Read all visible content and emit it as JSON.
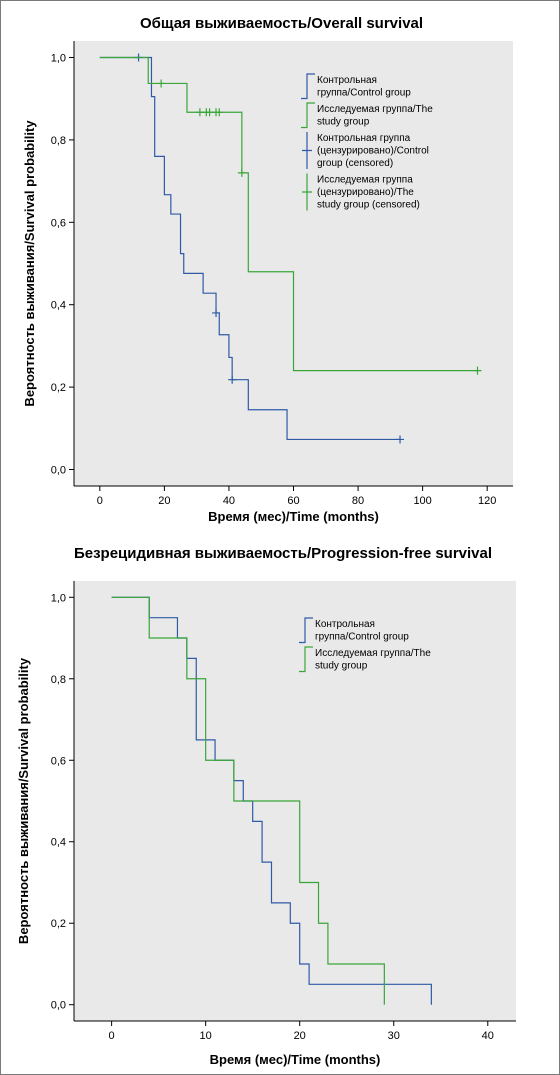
{
  "colors": {
    "background": "#e9e9e9",
    "control": "#2f5aa8",
    "study": "#3aa63a",
    "axis": "#000000"
  },
  "chart_data": [
    {
      "type": "line",
      "subtype": "kaplan-meier",
      "title": "Общая выживаемость/Overall survival",
      "xlabel": "Время (мес)/Time (months)",
      "ylabel": "Вероятность выживания/Survival probability",
      "xlim": [
        -8,
        128
      ],
      "ylim": [
        -0.04,
        1.04
      ],
      "xticks": [
        "0",
        "20",
        "40",
        "60",
        "80",
        "100",
        "120"
      ],
      "yticks": [
        "0,0",
        "0,2",
        "0,4",
        "0,6",
        "0,8",
        "1,0"
      ],
      "legend_position": "top-right",
      "legend": [
        {
          "key": "control",
          "marker": "line",
          "label": [
            "Контрольная",
            "группа/Control group"
          ]
        },
        {
          "key": "study",
          "marker": "line",
          "label": [
            "Исследуемая группа/The",
            "study group"
          ]
        },
        {
          "key": "control",
          "marker": "plus",
          "label": [
            "Контрольная группа",
            "(цензурировано)/Control",
            "group (censored)"
          ]
        },
        {
          "key": "study",
          "marker": "plus",
          "label": [
            "Исследуемая группа",
            "(цензурировано)/The",
            "study group (censored)"
          ]
        }
      ],
      "series": [
        {
          "key": "control",
          "name": "Контрольная группа/Control group",
          "steps": [
            [
              0,
              1.0
            ],
            [
              16,
              0.905
            ],
            [
              17,
              0.76
            ],
            [
              20,
              0.667
            ],
            [
              22,
              0.62
            ],
            [
              25,
              0.524
            ],
            [
              26,
              0.476
            ],
            [
              32,
              0.428
            ],
            [
              36,
              0.38
            ],
            [
              37,
              0.327
            ],
            [
              40,
              0.272
            ],
            [
              41,
              0.218
            ],
            [
              46,
              0.145
            ],
            [
              58,
              0.073
            ],
            [
              93,
              0.073
            ]
          ],
          "censored": [
            [
              12,
              1.0
            ],
            [
              36,
              0.38
            ],
            [
              41,
              0.218
            ],
            [
              93,
              0.073
            ]
          ]
        },
        {
          "key": "study",
          "name": "Исследуемая группа/The study group",
          "steps": [
            [
              0,
              1.0
            ],
            [
              15,
              0.937
            ],
            [
              27,
              0.867
            ],
            [
              44,
              0.72
            ],
            [
              46,
              0.48
            ],
            [
              60,
              0.24
            ],
            [
              117,
              0.24
            ]
          ],
          "censored": [
            [
              19,
              0.937
            ],
            [
              31,
              0.867
            ],
            [
              33,
              0.867
            ],
            [
              34,
              0.867
            ],
            [
              36,
              0.867
            ],
            [
              37,
              0.867
            ],
            [
              44,
              0.72
            ],
            [
              117,
              0.24
            ]
          ]
        }
      ]
    },
    {
      "type": "line",
      "subtype": "kaplan-meier",
      "title": "Безрецидивная выживаемость/Progression-free survival",
      "xlabel": "Время (мес)/Time (months)",
      "ylabel": "Вероятность выживания/Survival probability",
      "xlim": [
        -4,
        43
      ],
      "ylim": [
        -0.04,
        1.04
      ],
      "xticks": [
        "0",
        "10",
        "20",
        "30",
        "40"
      ],
      "yticks": [
        "0,0",
        "0,2",
        "0,4",
        "0,6",
        "0,8",
        "1,0"
      ],
      "legend_position": "top-right",
      "legend": [
        {
          "key": "control",
          "marker": "line",
          "label": [
            "Контрольная",
            "группа/Control group"
          ]
        },
        {
          "key": "study",
          "marker": "line",
          "label": [
            "Исследуемая группа/The",
            "study group"
          ]
        }
      ],
      "series": [
        {
          "key": "control",
          "name": "Контрольная группа/Control group",
          "steps": [
            [
              0,
              1.0
            ],
            [
              4,
              0.95
            ],
            [
              7,
              0.9
            ],
            [
              8,
              0.85
            ],
            [
              9,
              0.65
            ],
            [
              11,
              0.6
            ],
            [
              13,
              0.55
            ],
            [
              14,
              0.5
            ],
            [
              15,
              0.45
            ],
            [
              16,
              0.35
            ],
            [
              17,
              0.25
            ],
            [
              19,
              0.2
            ],
            [
              20,
              0.1
            ],
            [
              21,
              0.05
            ],
            [
              34,
              0.05
            ],
            [
              34,
              0.0
            ]
          ]
        },
        {
          "key": "study",
          "name": "Исследуемая группа/The study group",
          "steps": [
            [
              0,
              1.0
            ],
            [
              4,
              0.9
            ],
            [
              8,
              0.8
            ],
            [
              10,
              0.6
            ],
            [
              13,
              0.5
            ],
            [
              20,
              0.3
            ],
            [
              22,
              0.2
            ],
            [
              23,
              0.1
            ],
            [
              29,
              0.1
            ],
            [
              29,
              0.0
            ]
          ]
        }
      ]
    }
  ]
}
